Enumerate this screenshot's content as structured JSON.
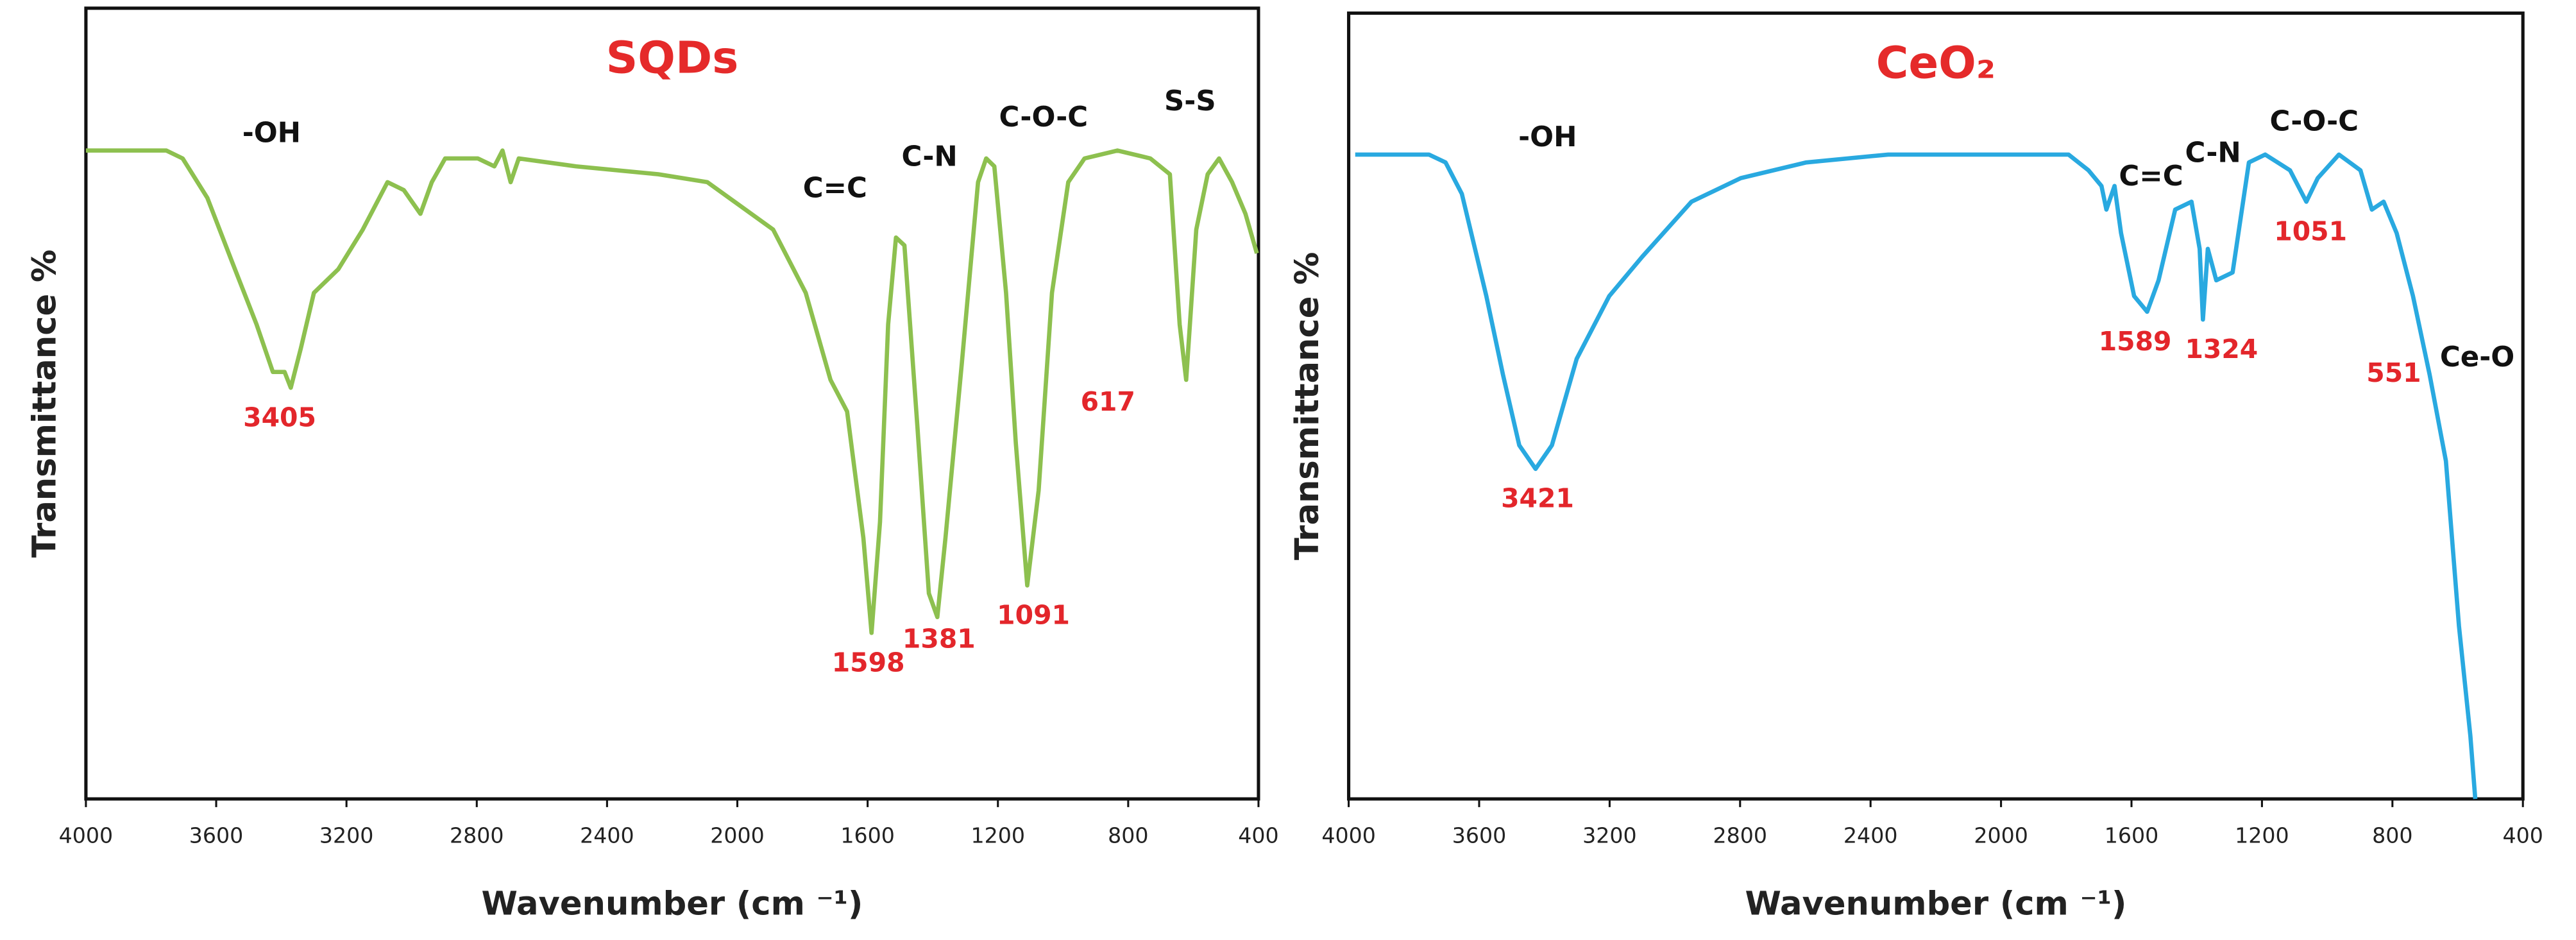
{
  "chart_data": [
    {
      "type": "line",
      "title": "SQDs",
      "title_color": "#e52a2a",
      "xlabel": "Wavenumber (cm ⁻¹)",
      "ylabel": "Transmittance %",
      "xlim": [
        4000,
        400
      ],
      "xticks": [
        4000,
        3600,
        3200,
        2800,
        2400,
        2000,
        1600,
        1200,
        800,
        400
      ],
      "ylim": [
        0,
        100
      ],
      "color": "#8dc04f",
      "x": [
        4000,
        3753,
        3703,
        3627,
        3552,
        3476,
        3426,
        3390,
        3371,
        3340,
        3300,
        3225,
        3150,
        3074,
        3024,
        2973,
        2938,
        2897,
        2797,
        2746,
        2721,
        2696,
        2671,
        2495,
        2243,
        2092,
        1890,
        1790,
        1714,
        1663,
        1613,
        1588,
        1562,
        1537,
        1513,
        1487,
        1447,
        1412,
        1386,
        1361,
        1311,
        1261,
        1236,
        1211,
        1175,
        1145,
        1110,
        1075,
        1034,
        984,
        934,
        833,
        732,
        672,
        642,
        622,
        591,
        556,
        521,
        481,
        440,
        405
      ],
      "values": [
        82,
        82,
        81,
        76,
        68,
        60,
        54,
        54,
        52,
        57,
        64,
        67,
        72,
        78,
        77,
        74,
        78,
        81,
        81,
        80,
        82,
        78,
        81,
        80,
        79,
        78,
        72,
        64,
        53,
        49,
        33,
        21,
        35,
        60,
        71,
        70,
        47,
        26,
        23,
        33,
        55,
        78,
        81,
        80,
        64,
        45,
        27,
        39,
        64,
        78,
        81,
        82,
        81,
        79,
        60,
        53,
        72,
        79,
        81,
        78,
        74,
        69
      ],
      "annotations": [
        {
          "text": "-OH",
          "x": 3430,
          "y": 84
        },
        {
          "text": "C=C",
          "x": 1700,
          "y": 77
        },
        {
          "text": "C-N",
          "x": 1410,
          "y": 81
        },
        {
          "text": "C-O-C",
          "x": 1060,
          "y": 86
        },
        {
          "text": "S-S",
          "x": 610,
          "y": 88
        }
      ],
      "peak_color": "#e3262b",
      "peak_labels": [
        {
          "x": 3405,
          "y": 48
        },
        {
          "x": 1598,
          "y": 17
        },
        {
          "x": 1381,
          "y": 20
        },
        {
          "x": 1091,
          "y": 23
        },
        {
          "x": 617,
          "y": 50
        }
      ]
    },
    {
      "type": "line",
      "title": "CeO₂",
      "title_color": "#e52a2a",
      "xlabel": "Wavenumber (cm ⁻¹)",
      "ylabel": "Transmittance %",
      "xlim": [
        4000,
        400
      ],
      "xticks": [
        4000,
        3600,
        3200,
        2800,
        2400,
        2000,
        1600,
        1200,
        800,
        400
      ],
      "ylim": [
        0,
        100
      ],
      "color": "#29a9e0",
      "x": [
        3980,
        3754,
        3703,
        3653,
        3578,
        3527,
        3477,
        3427,
        3377,
        3301,
        3201,
        3100,
        2949,
        2798,
        2597,
        2346,
        2094,
        1793,
        1732,
        1692,
        1677,
        1652,
        1632,
        1592,
        1552,
        1517,
        1466,
        1416,
        1391,
        1381,
        1366,
        1340,
        1290,
        1240,
        1190,
        1114,
        1064,
        1029,
        964,
        898,
        863,
        827,
        787,
        737,
        686,
        636,
        596,
        561,
        546
      ],
      "values": [
        82,
        82,
        81,
        77,
        64,
        54,
        45,
        42,
        45,
        56,
        64,
        69,
        76,
        79,
        81,
        82,
        82,
        82,
        80,
        78,
        75,
        78,
        72,
        64,
        62,
        66,
        75,
        76,
        70,
        61,
        70,
        66,
        67,
        81,
        82,
        80,
        76,
        79,
        82,
        80,
        75,
        76,
        72,
        64,
        54,
        43,
        22,
        8,
        0
      ],
      "annotations": [
        {
          "text": "-OH",
          "x": 3390,
          "y": 84
        },
        {
          "text": "C=C",
          "x": 1540,
          "y": 79
        },
        {
          "text": "C-N",
          "x": 1350,
          "y": 82
        },
        {
          "text": "C-O-C",
          "x": 1040,
          "y": 86
        },
        {
          "text": "Ce-O",
          "x": 540,
          "y": 56
        }
      ],
      "peak_color": "#e3262b",
      "peak_labels": [
        {
          "x": 3421,
          "y": 38
        },
        {
          "x": 1589,
          "y": 58
        },
        {
          "x": 1324,
          "y": 57
        },
        {
          "x": 1051,
          "y": 72
        },
        {
          "x": 551,
          "y": 54
        }
      ]
    }
  ]
}
